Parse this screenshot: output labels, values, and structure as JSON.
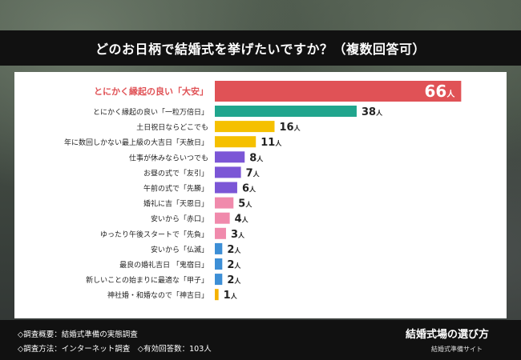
{
  "chart_data": {
    "type": "bar",
    "orientation": "horizontal",
    "title": "どのお日柄で結婚式を挙げたいですか？（複数回答可）",
    "unit": "人",
    "xlim": [
      0,
      70
    ],
    "categories": [
      "とにかく縁起の良い「大安」",
      "とにかく縁起の良い「一粒万倍日」",
      "土日祝日ならどこでも",
      "年に数回しかない最上級の大吉日「天赦日」",
      "仕事が休みならいつでも",
      "お昼の式で「友引」",
      "午前の式で「先勝」",
      "婚礼に吉「天恩日」",
      "安いから「赤口」",
      "ゆったり午後スタートで「先負」",
      "安いから「仏滅」",
      "最良の婚礼吉日 「鬼宿日」",
      "新しいことの始まりに最適な「甲子」",
      "神社婚・和婚なので「神吉日」"
    ],
    "values": [
      66,
      38,
      16,
      11,
      8,
      7,
      6,
      5,
      4,
      3,
      2,
      2,
      2,
      1
    ],
    "colors": [
      "#e05256",
      "#20a58d",
      "#f5c000",
      "#f5c000",
      "#7b56d6",
      "#7b56d6",
      "#7b56d6",
      "#f08aac",
      "#f08aac",
      "#f08aac",
      "#3d8fd6",
      "#3d8fd6",
      "#3d8fd6",
      "#f5b200"
    ],
    "highlight_index": 0,
    "highlight_color": "#e05256",
    "label_color": "#222222"
  },
  "footer": {
    "line1": "◇調査概要：結婚式準備の実態調査",
    "line2": "◇調査方法：インターネット調査　◇有効回答数：103人",
    "brand_name": "結婚式場の選び方",
    "brand_sub": "結婚式準備サイト"
  }
}
